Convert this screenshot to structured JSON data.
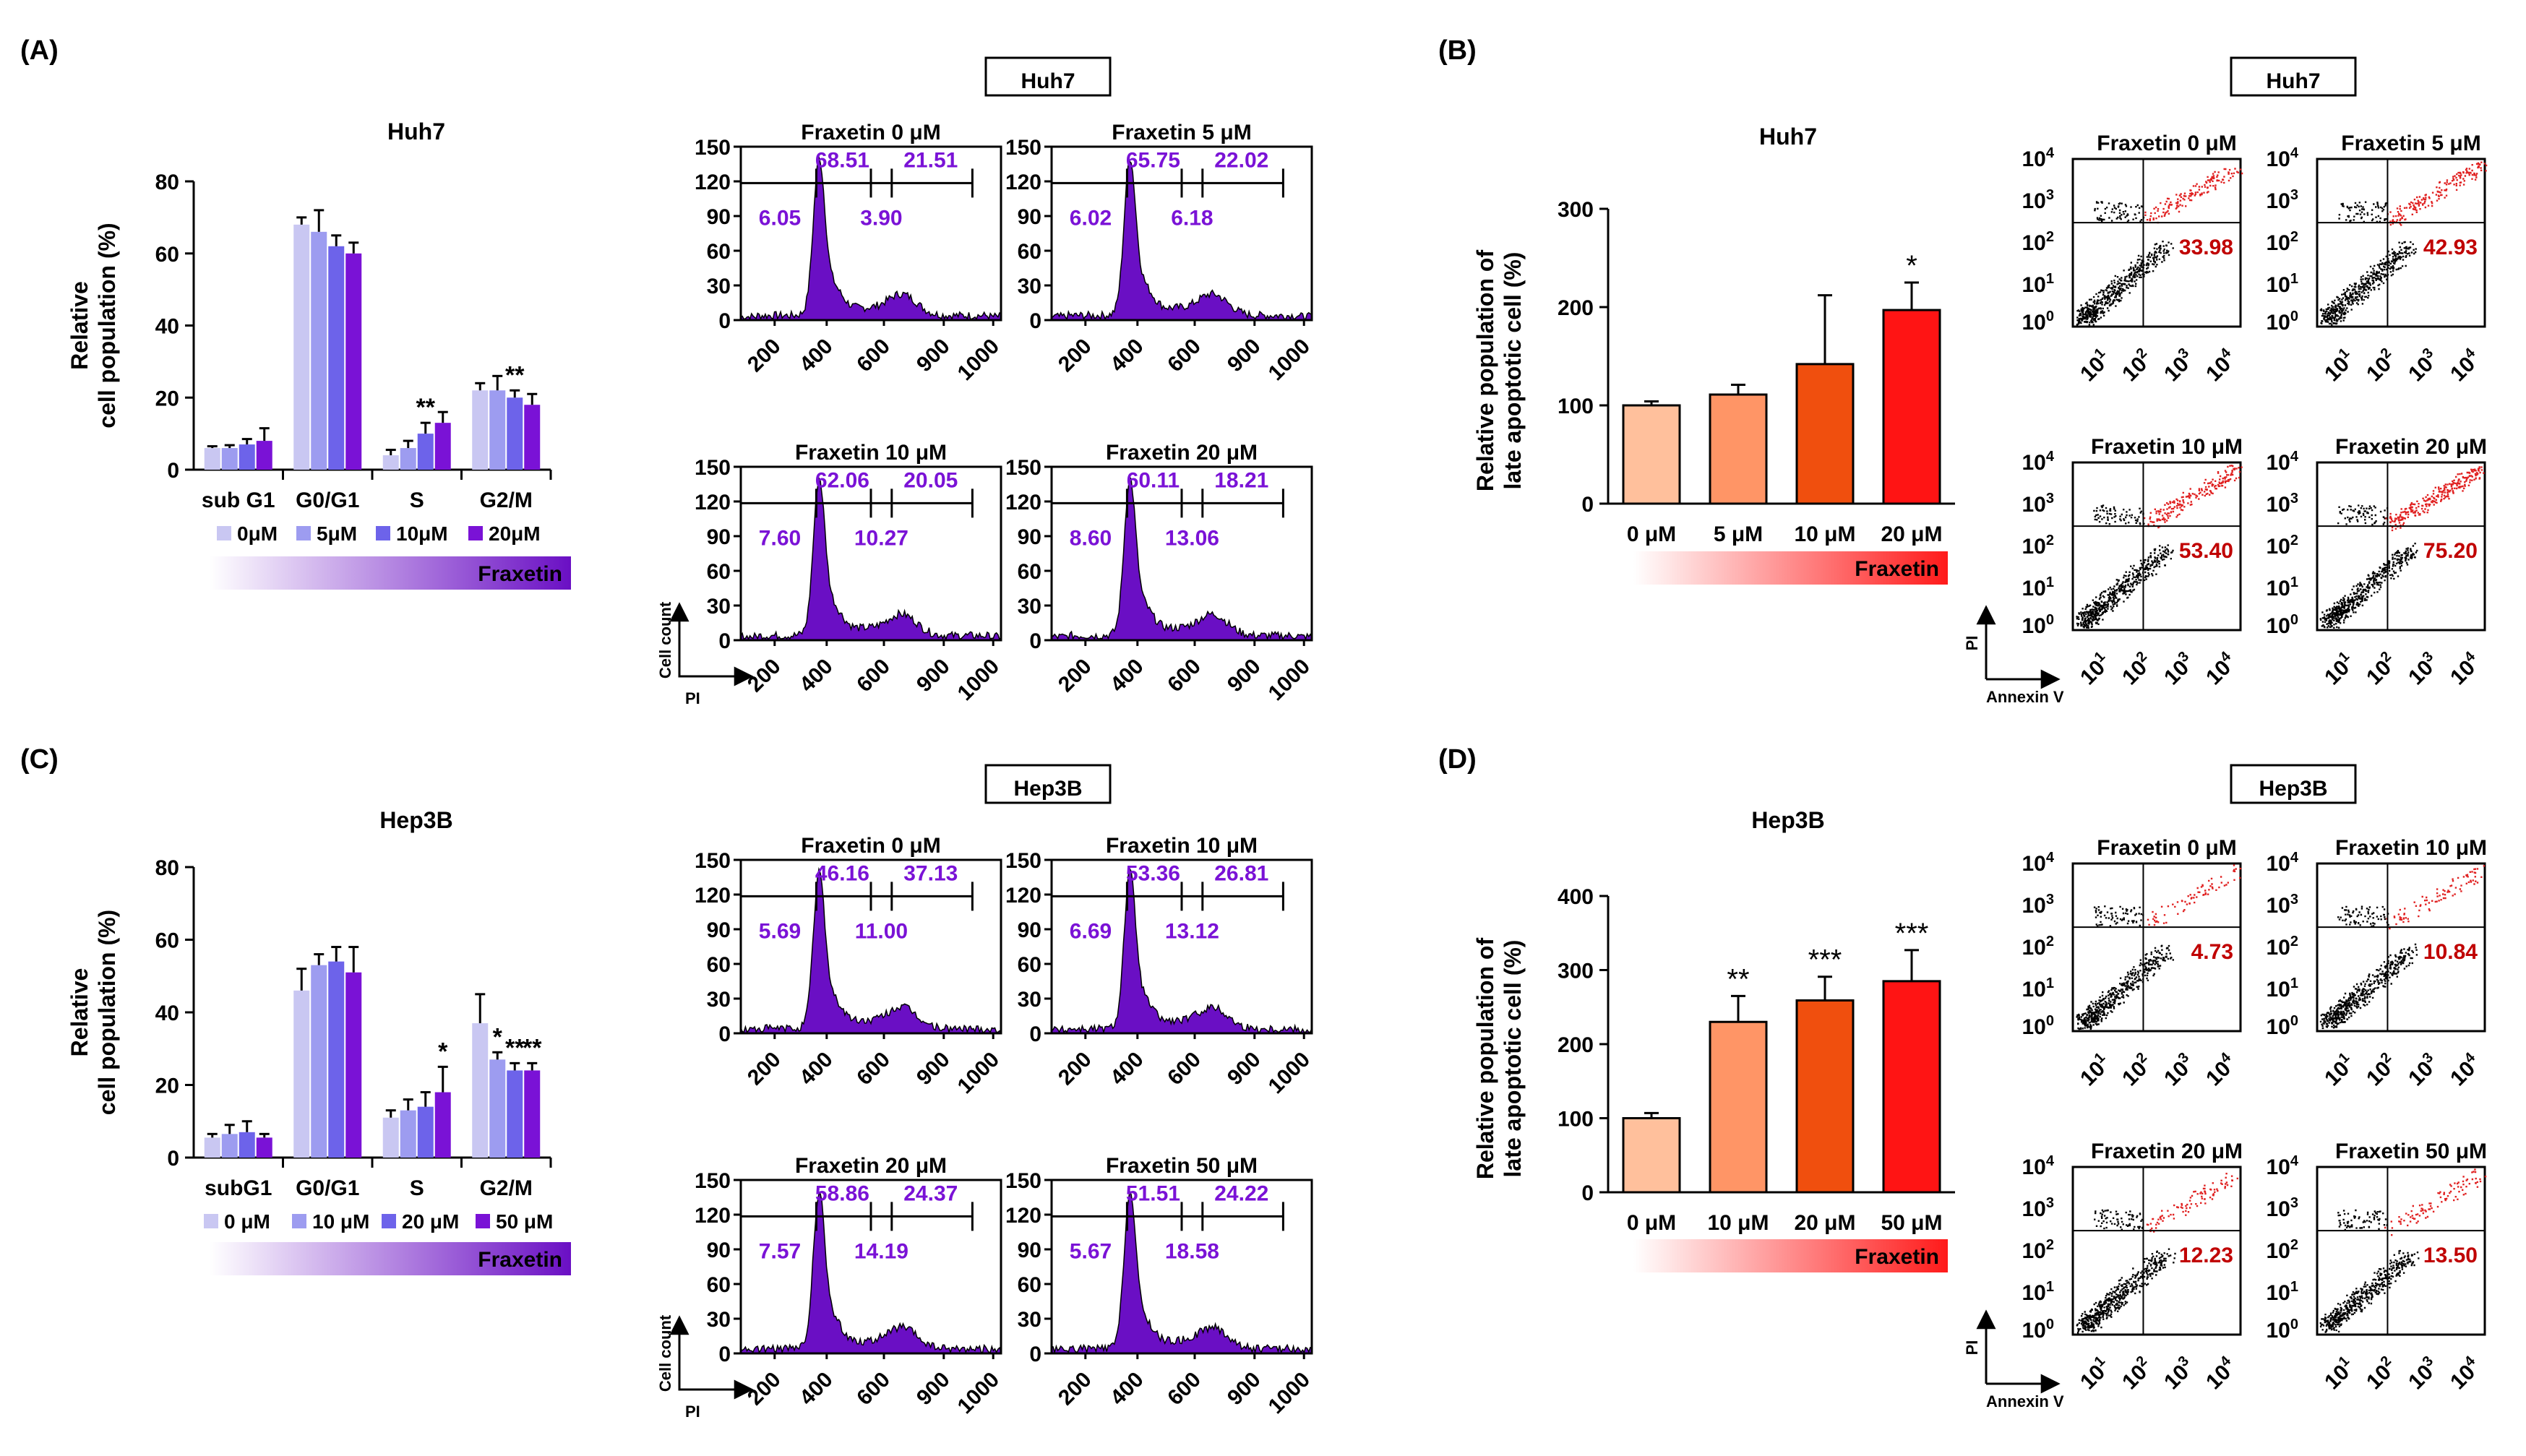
{
  "chart_data": [
    {
      "type": "bar",
      "panel_label": "(A)",
      "title": "Huh7",
      "ylabel": "Relative\ncell population (%)",
      "ylim": [
        0,
        80
      ],
      "yticks": [
        0,
        20,
        40,
        60,
        80
      ],
      "categories": [
        "sub G1",
        "G0/G1",
        "S",
        "G2/M"
      ],
      "series": [
        {
          "name": "0μM",
          "values": [
            6,
            68,
            4,
            22
          ],
          "errors": [
            0.5,
            2,
            1.5,
            2
          ],
          "color": "#c9c7f2"
        },
        {
          "name": "5μM",
          "values": [
            6,
            66,
            6,
            22
          ],
          "errors": [
            0.8,
            6,
            2,
            4
          ],
          "color": "#9d9cf0"
        },
        {
          "name": "10μM",
          "values": [
            7,
            62,
            10,
            20
          ],
          "errors": [
            1.5,
            3,
            3,
            2
          ],
          "color": "#6d63ea"
        },
        {
          "name": "20μM",
          "values": [
            8,
            60,
            13,
            18
          ],
          "errors": [
            3.5,
            3,
            3,
            3
          ],
          "color": "#7a12d6"
        }
      ],
      "annotations": [
        [
          "",
          "",
          "",
          ""
        ],
        [
          "",
          "",
          "",
          ""
        ],
        [
          "",
          "",
          "**",
          "**"
        ],
        [
          "",
          "",
          "",
          ""
        ]
      ],
      "gradient_label": "Fraxetin",
      "gradient_colors": [
        "#ffffff",
        "#6a0fc4"
      ]
    },
    {
      "type": "histogram",
      "panel_label": "",
      "cell_line": "Huh7",
      "xlabel": "PI",
      "ylabel": "Cell count",
      "xticks": [
        "200",
        "400",
        "600",
        "900",
        "1000"
      ],
      "yticks": [
        0,
        30,
        60,
        90,
        120,
        150
      ],
      "fill_color": "#6a0fc4",
      "plots": [
        {
          "title": "Fraxetin 0 μM",
          "top": [
            "68.51",
            "21.51"
          ],
          "bottom": [
            "6.05",
            "3.90"
          ]
        },
        {
          "title": "Fraxetin 5 μM",
          "top": [
            "65.75",
            "22.02"
          ],
          "bottom": [
            "6.02",
            "6.18"
          ]
        },
        {
          "title": "Fraxetin 10 μM",
          "top": [
            "62.06",
            "20.05"
          ],
          "bottom": [
            "7.60",
            "10.27"
          ]
        },
        {
          "title": "Fraxetin 20 μM",
          "top": [
            "60.11",
            "18.21"
          ],
          "bottom": [
            "8.60",
            "13.06"
          ]
        }
      ]
    },
    {
      "type": "bar",
      "panel_label": "(B)",
      "title": "Huh7",
      "ylabel": "Relative population of\nlate apoptotic cell (%)",
      "ylim": [
        0,
        300
      ],
      "yticks": [
        0,
        100,
        200,
        300
      ],
      "categories": [
        "0 μM",
        "5 μM",
        "10 μM",
        "20 μM"
      ],
      "values": [
        100,
        111,
        142,
        197
      ],
      "errors": [
        4,
        10,
        70,
        28
      ],
      "colors": [
        "#ffc09c",
        "#ff9566",
        "#f04f0e",
        "#ff1414"
      ],
      "annotations": [
        "",
        "",
        "",
        "*"
      ],
      "gradient_label": "Fraxetin",
      "gradient_colors": [
        "#ffffff",
        "#ff1a1a"
      ]
    },
    {
      "type": "scatter",
      "panel_label": "",
      "cell_line": "Huh7",
      "xlabel": "Annexin V",
      "ylabel": "PI",
      "point_colors": [
        "#000000",
        "#e02020"
      ],
      "value_color": "#c00000",
      "plots": [
        {
          "title": "Fraxetin 0 μM",
          "value": "33.98"
        },
        {
          "title": "Fraxetin 5 μM",
          "value": "42.93"
        },
        {
          "title": "Fraxetin 10 μM",
          "value": "53.40"
        },
        {
          "title": "Fraxetin 20 μM",
          "value": "75.20"
        }
      ]
    },
    {
      "type": "bar",
      "panel_label": "(C)",
      "title": "Hep3B",
      "ylabel": "Relative\ncell population (%)",
      "ylim": [
        0,
        80
      ],
      "yticks": [
        0,
        20,
        40,
        60,
        80
      ],
      "categories": [
        "subG1",
        "G0/G1",
        "S",
        "G2/M"
      ],
      "series": [
        {
          "name": "0 μM",
          "values": [
            5.5,
            46,
            11,
            37
          ],
          "errors": [
            1,
            6,
            2,
            8
          ],
          "color": "#c9c7f2"
        },
        {
          "name": "10 μM",
          "values": [
            6.5,
            53,
            13,
            27
          ],
          "errors": [
            2.5,
            3,
            3,
            2
          ],
          "color": "#9d9cf0"
        },
        {
          "name": "20 μM",
          "values": [
            7,
            54,
            14,
            24
          ],
          "errors": [
            3,
            4,
            4,
            2
          ],
          "color": "#6d63ea"
        },
        {
          "name": "50 μM",
          "values": [
            5.5,
            51,
            18,
            24
          ],
          "errors": [
            1,
            7,
            7,
            2
          ],
          "color": "#7a12d6"
        }
      ],
      "annotations": [
        [
          "",
          "",
          "",
          ""
        ],
        [
          "",
          "",
          "",
          "*"
        ],
        [
          "",
          "",
          "",
          "**"
        ],
        [
          "",
          "",
          "*",
          "**"
        ]
      ],
      "gradient_label": "Fraxetin",
      "gradient_colors": [
        "#ffffff",
        "#6a0fc4"
      ]
    },
    {
      "type": "histogram",
      "panel_label": "",
      "cell_line": "Hep3B",
      "xlabel": "PI",
      "ylabel": "Cell count",
      "xticks": [
        "200",
        "400",
        "600",
        "900",
        "1000"
      ],
      "yticks": [
        0,
        30,
        60,
        90,
        120,
        150
      ],
      "fill_color": "#6a0fc4",
      "plots": [
        {
          "title": "Fraxetin 0 μM",
          "top": [
            "46.16",
            "37.13"
          ],
          "bottom": [
            "5.69",
            "11.00"
          ]
        },
        {
          "title": "Fraxetin 10 μM",
          "top": [
            "53.36",
            "26.81"
          ],
          "bottom": [
            "6.69",
            "13.12"
          ]
        },
        {
          "title": "Fraxetin 20 μM",
          "top": [
            "58.86",
            "24.37"
          ],
          "bottom": [
            "7.57",
            "14.19"
          ]
        },
        {
          "title": "Fraxetin 50 μM",
          "top": [
            "51.51",
            "24.22"
          ],
          "bottom": [
            "5.67",
            "18.58"
          ]
        }
      ]
    },
    {
      "type": "bar",
      "panel_label": "(D)",
      "title": "Hep3B",
      "ylabel": "Relative population of\nlate apoptotic cell (%)",
      "ylim": [
        0,
        400
      ],
      "yticks": [
        0,
        100,
        200,
        300,
        400
      ],
      "categories": [
        "0 μM",
        "10 μM",
        "20 μM",
        "50 μM"
      ],
      "values": [
        100,
        230,
        259,
        285
      ],
      "errors": [
        7,
        35,
        32,
        42
      ],
      "colors": [
        "#ffc09c",
        "#ff9566",
        "#f04f0e",
        "#ff1414"
      ],
      "annotations": [
        "",
        "**",
        "***",
        "***"
      ],
      "gradient_label": "Fraxetin",
      "gradient_colors": [
        "#ffffff",
        "#ff1a1a"
      ]
    },
    {
      "type": "scatter",
      "panel_label": "",
      "cell_line": "Hep3B",
      "xlabel": "Annexin V",
      "ylabel": "PI",
      "point_colors": [
        "#000000",
        "#e02020"
      ],
      "value_color": "#c00000",
      "plots": [
        {
          "title": "Fraxetin 0 μM",
          "value": "4.73"
        },
        {
          "title": "Fraxetin 10 μM",
          "value": "10.84"
        },
        {
          "title": "Fraxetin 20 μM",
          "value": "12.23"
        },
        {
          "title": "Fraxetin 50 μM",
          "value": "13.50"
        }
      ]
    }
  ]
}
